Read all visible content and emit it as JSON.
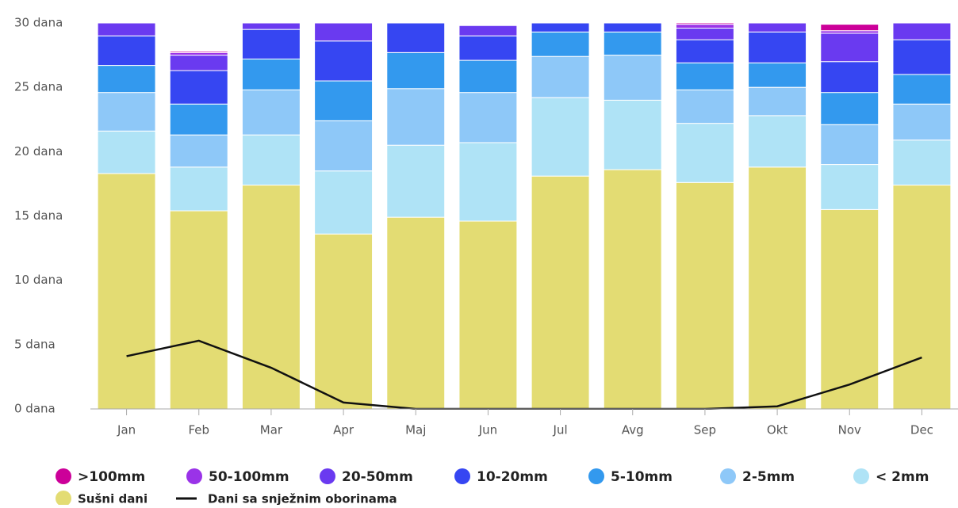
{
  "chart_data": {
    "type": "bar",
    "stacked": true,
    "categories": [
      "Jan",
      "Feb",
      "Mar",
      "Apr",
      "Maj",
      "Jun",
      "Jul",
      "Avg",
      "Sep",
      "Okt",
      "Nov",
      "Dec"
    ],
    "ylim": [
      0,
      30
    ],
    "yticks": [
      {
        "value": 0,
        "label": "0 dana"
      },
      {
        "value": 5,
        "label": "5 dana"
      },
      {
        "value": 10,
        "label": "10 dana"
      },
      {
        "value": 15,
        "label": "15 dana"
      },
      {
        "value": 20,
        "label": "20 dana"
      },
      {
        "value": 25,
        "label": "25 dana"
      },
      {
        "value": 30,
        "label": "30 dana"
      }
    ],
    "grid": false,
    "series": [
      {
        "name": "Sušni dani",
        "color": "#e3dc73",
        "values": [
          18.3,
          15.4,
          17.4,
          13.6,
          14.9,
          14.6,
          18.1,
          18.6,
          17.6,
          18.8,
          15.5,
          17.4
        ]
      },
      {
        "name": "< 2mm",
        "color": "#afe3f6",
        "values": [
          3.3,
          3.4,
          3.9,
          4.9,
          5.6,
          6.1,
          6.1,
          5.4,
          4.6,
          4.0,
          3.5,
          3.5
        ]
      },
      {
        "name": "2-5mm",
        "color": "#8ec8f8",
        "values": [
          3.0,
          2.5,
          3.5,
          3.9,
          4.4,
          3.9,
          3.2,
          3.5,
          2.6,
          2.2,
          3.1,
          2.8
        ]
      },
      {
        "name": "5-10mm",
        "color": "#3399ee",
        "values": [
          2.1,
          2.4,
          2.4,
          3.1,
          2.8,
          2.5,
          1.9,
          1.8,
          2.1,
          1.9,
          2.5,
          2.3
        ]
      },
      {
        "name": "10-20mm",
        "color": "#3646f2",
        "values": [
          2.3,
          2.6,
          2.3,
          3.1,
          2.3,
          1.9,
          0.7,
          0.7,
          1.8,
          2.4,
          2.4,
          2.7
        ]
      },
      {
        "name": "20-50mm",
        "color": "#6a3af0",
        "values": [
          1.0,
          1.2,
          0.5,
          1.4,
          0,
          0.8,
          0,
          0,
          0.9,
          0.7,
          2.2,
          1.3
        ]
      },
      {
        "name": "50-100mm",
        "color": "#9a33e8",
        "values": [
          0,
          0.2,
          0,
          0,
          0,
          0,
          0,
          0,
          0.3,
          0,
          0.2,
          0
        ]
      },
      {
        "name": ">100mm",
        "color": "#cc0099",
        "values": [
          0,
          0.1,
          0,
          0,
          0,
          0,
          0,
          0,
          0.1,
          0,
          0.5,
          0
        ]
      },
      {
        "name": "Dani sa snježnim oborinama",
        "type": "line",
        "color": "#111111",
        "values": [
          4.1,
          5.3,
          3.2,
          0.5,
          0,
          0,
          0,
          0,
          0,
          0.2,
          1.9,
          4.0
        ]
      }
    ]
  }
}
